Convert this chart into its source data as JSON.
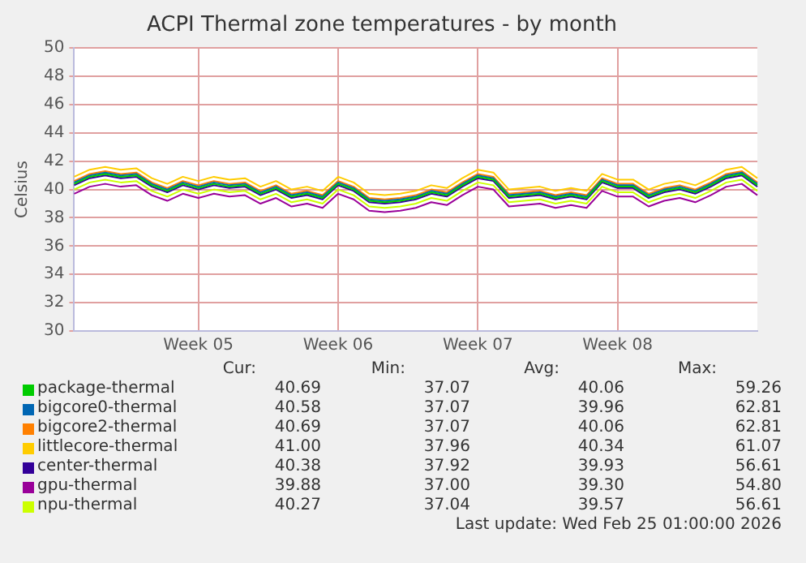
{
  "chart_data": {
    "type": "line",
    "title": "ACPI Thermal zone temperatures - by month",
    "ylabel": "Celsius",
    "categories": [
      null,
      null,
      null,
      null,
      null,
      null,
      null,
      null,
      "Week 05",
      null,
      null,
      null,
      null,
      null,
      null,
      null,
      null,
      "Week 06",
      null,
      null,
      null,
      null,
      null,
      null,
      null,
      null,
      "Week 07",
      null,
      null,
      null,
      null,
      null,
      null,
      null,
      null,
      "Week 08",
      null,
      null,
      null,
      null,
      null,
      null,
      null,
      null,
      null
    ],
    "ylim": [
      30,
      50
    ],
    "yticks": [
      30,
      32,
      34,
      36,
      38,
      40,
      42,
      44,
      46,
      48,
      50
    ],
    "grid": true,
    "legend": "bottom",
    "marker": "none",
    "line_style": "solid",
    "series": [
      {
        "name": "package-thermal",
        "color": "#00cc00",
        "values": [
          40.4,
          40.9,
          41.1,
          40.9,
          41.0,
          40.3,
          39.9,
          40.4,
          40.1,
          40.4,
          40.2,
          40.3,
          39.7,
          40.1,
          39.5,
          39.7,
          39.4,
          40.4,
          40.0,
          39.2,
          39.1,
          39.2,
          39.4,
          39.8,
          39.6,
          40.3,
          40.9,
          40.7,
          39.5,
          39.6,
          39.7,
          39.4,
          39.6,
          39.4,
          40.6,
          40.2,
          40.2,
          39.5,
          39.9,
          40.1,
          39.8,
          40.3,
          40.9,
          41.1,
          40.3
        ]
      },
      {
        "name": "bigcore0-thermal",
        "color": "#0066b3",
        "values": [
          40.5,
          41.0,
          41.2,
          41.0,
          41.1,
          40.4,
          40.0,
          40.5,
          40.2,
          40.5,
          40.3,
          40.4,
          39.8,
          40.2,
          39.6,
          39.8,
          39.5,
          40.5,
          40.1,
          39.3,
          39.2,
          39.3,
          39.5,
          39.9,
          39.7,
          40.4,
          41.0,
          40.8,
          39.6,
          39.7,
          39.8,
          39.5,
          39.7,
          39.5,
          40.7,
          40.3,
          40.3,
          39.6,
          40.0,
          40.2,
          39.9,
          40.4,
          41.0,
          41.2,
          40.4
        ]
      },
      {
        "name": "bigcore2-thermal",
        "color": "#ff8000",
        "values": [
          40.6,
          41.1,
          41.3,
          41.1,
          41.2,
          40.5,
          40.1,
          40.6,
          40.3,
          40.6,
          40.4,
          40.5,
          39.9,
          40.3,
          39.7,
          39.9,
          39.6,
          40.6,
          40.2,
          39.4,
          39.3,
          39.4,
          39.6,
          40.0,
          39.8,
          40.5,
          41.1,
          40.9,
          39.7,
          39.8,
          39.9,
          39.6,
          39.8,
          39.6,
          40.8,
          40.4,
          40.4,
          39.7,
          40.1,
          40.3,
          40.0,
          40.5,
          41.1,
          41.3,
          40.5
        ]
      },
      {
        "name": "littlecore-thermal",
        "color": "#ffcc00",
        "values": [
          40.9,
          41.4,
          41.6,
          41.4,
          41.5,
          40.8,
          40.4,
          40.9,
          40.6,
          40.9,
          40.7,
          40.8,
          40.2,
          40.6,
          40.0,
          40.2,
          39.9,
          40.9,
          40.5,
          39.7,
          39.6,
          39.7,
          39.9,
          40.3,
          40.1,
          40.8,
          41.4,
          41.2,
          40.0,
          40.1,
          40.2,
          39.9,
          40.1,
          39.9,
          41.1,
          40.7,
          40.7,
          40.0,
          40.4,
          40.6,
          40.3,
          40.8,
          41.4,
          41.6,
          40.8
        ]
      },
      {
        "name": "center-thermal",
        "color": "#330099",
        "values": [
          40.3,
          40.8,
          41.0,
          40.8,
          40.9,
          40.2,
          39.8,
          40.3,
          40.0,
          40.3,
          40.1,
          40.2,
          39.6,
          40.0,
          39.4,
          39.6,
          39.3,
          40.3,
          39.9,
          39.1,
          39.0,
          39.1,
          39.3,
          39.7,
          39.5,
          40.2,
          40.8,
          40.6,
          39.4,
          39.5,
          39.6,
          39.3,
          39.5,
          39.3,
          40.5,
          40.1,
          40.1,
          39.4,
          39.8,
          40.0,
          39.7,
          40.2,
          40.8,
          41.0,
          40.2
        ]
      },
      {
        "name": "gpu-thermal",
        "color": "#990099",
        "values": [
          39.7,
          40.2,
          40.4,
          40.2,
          40.3,
          39.6,
          39.2,
          39.7,
          39.4,
          39.7,
          39.5,
          39.6,
          39.0,
          39.4,
          38.8,
          39.0,
          38.7,
          39.7,
          39.3,
          38.5,
          38.4,
          38.5,
          38.7,
          39.1,
          38.9,
          39.6,
          40.2,
          40.0,
          38.8,
          38.9,
          39.0,
          38.7,
          38.9,
          38.7,
          39.9,
          39.5,
          39.5,
          38.8,
          39.2,
          39.4,
          39.1,
          39.6,
          40.2,
          40.4,
          39.6
        ]
      },
      {
        "name": "npu-thermal",
        "color": "#ccff00",
        "values": [
          40.0,
          40.5,
          40.7,
          40.5,
          40.6,
          39.9,
          39.5,
          40.0,
          39.7,
          40.0,
          39.8,
          39.9,
          39.3,
          39.7,
          39.1,
          39.3,
          39.0,
          40.0,
          39.6,
          38.8,
          38.7,
          38.8,
          39.0,
          39.4,
          39.2,
          39.9,
          40.5,
          40.3,
          39.1,
          39.2,
          39.3,
          39.0,
          39.2,
          39.0,
          40.2,
          39.8,
          39.8,
          39.1,
          39.5,
          39.7,
          39.4,
          39.9,
          40.5,
          40.7,
          39.9
        ]
      }
    ],
    "annotations": [
      "Cur:",
      "Min:",
      "Avg:",
      "Max:",
      "40.69",
      "37.07",
      "40.06",
      "59.26",
      "40.58",
      "37.07",
      "39.96",
      "62.81",
      "40.69",
      "37.07",
      "40.06",
      "62.81",
      "41.00",
      "37.96",
      "40.34",
      "61.07",
      "40.38",
      "37.92",
      "39.93",
      "56.61",
      "39.88",
      "37.00",
      "39.30",
      "54.80",
      "40.27",
      "37.04",
      "39.57",
      "56.61",
      "Last update: Wed Feb 25 01:00:00 2026"
    ]
  }
}
